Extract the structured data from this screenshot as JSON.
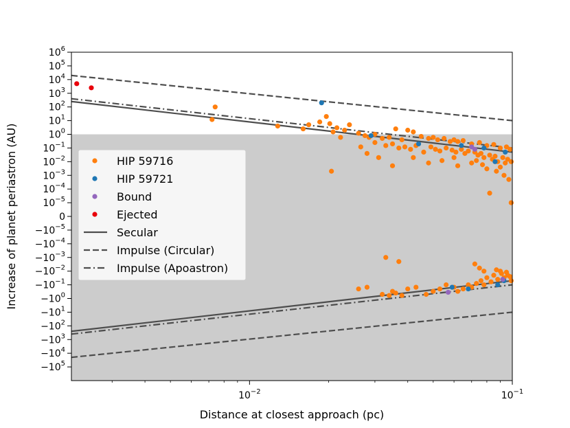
{
  "chart_data": {
    "type": "scatter",
    "title": "",
    "xlabel": "Distance at closest approach (pc)",
    "ylabel": "Increase of planet periastron (AU)",
    "x_scale": "log",
    "y_scale": "symlog",
    "xlim": [
      0.0021,
      0.1
    ],
    "ylim": [
      -1000000,
      1000000
    ],
    "shaded_region": {
      "y_from": -1000000,
      "y_to": 1,
      "color": "#cccccc"
    },
    "x_ticks": [
      {
        "value": 0.01,
        "base": "10",
        "exp": "−2"
      },
      {
        "value": 0.1,
        "base": "10",
        "exp": "−1"
      }
    ],
    "y_ticks": [
      {
        "value": 1000000,
        "base": "10",
        "exp": "6"
      },
      {
        "value": 100000,
        "base": "10",
        "exp": "5"
      },
      {
        "value": 10000,
        "base": "10",
        "exp": "4"
      },
      {
        "value": 1000,
        "base": "10",
        "exp": "3"
      },
      {
        "value": 100,
        "base": "10",
        "exp": "2"
      },
      {
        "value": 10,
        "base": "10",
        "exp": "1"
      },
      {
        "value": 1,
        "base": "10",
        "exp": "0"
      },
      {
        "value": 0.1,
        "base": "10",
        "exp": "−1"
      },
      {
        "value": 0.01,
        "base": "10",
        "exp": "−2"
      },
      {
        "value": 0.001,
        "base": "10",
        "exp": "−3"
      },
      {
        "value": 0.0001,
        "base": "10",
        "exp": "−4"
      },
      {
        "value": 1e-05,
        "base": "10",
        "exp": "−5"
      },
      {
        "value": 0,
        "base": "0",
        "exp": ""
      },
      {
        "value": -1e-05,
        "base": "−10",
        "exp": "−5"
      },
      {
        "value": -0.0001,
        "base": "−10",
        "exp": "−4"
      },
      {
        "value": -0.001,
        "base": "−10",
        "exp": "−3"
      },
      {
        "value": -0.01,
        "base": "−10",
        "exp": "−2"
      },
      {
        "value": -0.1,
        "base": "−10",
        "exp": "−1"
      },
      {
        "value": -1,
        "base": "−10",
        "exp": "0"
      },
      {
        "value": -10,
        "base": "−10",
        "exp": "1"
      },
      {
        "value": -100,
        "base": "−10",
        "exp": "2"
      },
      {
        "value": -1000,
        "base": "−10",
        "exp": "3"
      },
      {
        "value": -10000,
        "base": "−10",
        "exp": "4"
      },
      {
        "value": -100000,
        "base": "−10",
        "exp": "5"
      }
    ],
    "legend": {
      "position": "center-left",
      "entries": [
        {
          "label": "HIP 59716",
          "kind": "marker",
          "color": "#ff7f0e"
        },
        {
          "label": "HIP 59721",
          "kind": "marker",
          "color": "#1f77b4"
        },
        {
          "label": "Bound",
          "kind": "marker",
          "color": "#9467bd"
        },
        {
          "label": "Ejected",
          "kind": "marker",
          "color": "#e8000b"
        },
        {
          "label": "Secular",
          "kind": "line",
          "style": "solid",
          "color": "#4d4d4d"
        },
        {
          "label": "Impulse (Circular)",
          "kind": "line",
          "style": "dashed",
          "color": "#4d4d4d"
        },
        {
          "label": "Impulse (Apoastron)",
          "kind": "line",
          "style": "dashdot",
          "color": "#4d4d4d"
        }
      ]
    },
    "lines": [
      {
        "name": "Impulse (Circular)",
        "style": "dashed",
        "color": "#4d4d4d",
        "x": [
          0.0021,
          0.1
        ],
        "y": [
          20000,
          10
        ]
      },
      {
        "name": "Impulse (Apoastron)",
        "style": "dashdot",
        "color": "#4d4d4d",
        "x": [
          0.0021,
          0.1
        ],
        "y": [
          400,
          0.1
        ]
      },
      {
        "name": "Secular",
        "style": "solid",
        "color": "#4d4d4d",
        "x": [
          0.0021,
          0.1
        ],
        "y": [
          250,
          0.05
        ]
      },
      {
        "name": "Impulse (Circular)",
        "style": "dashed",
        "color": "#4d4d4d",
        "x": [
          0.0021,
          0.1
        ],
        "y": [
          -20000,
          -10
        ]
      },
      {
        "name": "Impulse (Apoastron)",
        "style": "dashdot",
        "color": "#4d4d4d",
        "x": [
          0.0021,
          0.1
        ],
        "y": [
          -400,
          -0.1
        ]
      },
      {
        "name": "Secular",
        "style": "solid",
        "color": "#4d4d4d",
        "x": [
          0.0021,
          0.1
        ],
        "y": [
          -250,
          -0.05
        ]
      }
    ],
    "series": [
      {
        "name": "HIP 59716",
        "color": "#ff7f0e",
        "points": [
          [
            0.0074,
            100
          ],
          [
            0.0072,
            12
          ],
          [
            0.0128,
            4
          ],
          [
            0.016,
            2.5
          ],
          [
            0.0168,
            5
          ],
          [
            0.0185,
            8
          ],
          [
            0.0196,
            20
          ],
          [
            0.0202,
            6
          ],
          [
            0.0208,
            1.5
          ],
          [
            0.0215,
            3
          ],
          [
            0.0222,
            0.6
          ],
          [
            0.023,
            2
          ],
          [
            0.024,
            5
          ],
          [
            0.026,
            1.2
          ],
          [
            0.0275,
            0.8
          ],
          [
            0.0285,
            0.6
          ],
          [
            0.03,
            1
          ],
          [
            0.032,
            0.5
          ],
          [
            0.034,
            0.6
          ],
          [
            0.036,
            2.5
          ],
          [
            0.038,
            0.4
          ],
          [
            0.04,
            2
          ],
          [
            0.042,
            1.5
          ],
          [
            0.045,
            0.7
          ],
          [
            0.048,
            0.5
          ],
          [
            0.05,
            0.6
          ],
          [
            0.052,
            0.4
          ],
          [
            0.055,
            0.5
          ],
          [
            0.058,
            0.3
          ],
          [
            0.06,
            0.4
          ],
          [
            0.062,
            0.3
          ],
          [
            0.065,
            0.35
          ],
          [
            0.07,
            0.2
          ],
          [
            0.075,
            0.25
          ],
          [
            0.08,
            0.15
          ],
          [
            0.085,
            0.18
          ],
          [
            0.09,
            0.1
          ],
          [
            0.095,
            0.12
          ],
          [
            0.098,
            0.08
          ],
          [
            0.0265,
            0.12
          ],
          [
            0.03,
            0.25
          ],
          [
            0.033,
            0.15
          ],
          [
            0.035,
            0.2
          ],
          [
            0.037,
            0.1
          ],
          [
            0.039,
            0.12
          ],
          [
            0.041,
            0.08
          ],
          [
            0.043,
            0.15
          ],
          [
            0.046,
            0.05
          ],
          [
            0.049,
            0.12
          ],
          [
            0.051,
            0.08
          ],
          [
            0.053,
            0.06
          ],
          [
            0.056,
            0.1
          ],
          [
            0.059,
            0.07
          ],
          [
            0.061,
            0.05
          ],
          [
            0.064,
            0.08
          ],
          [
            0.066,
            0.04
          ],
          [
            0.068,
            0.06
          ],
          [
            0.072,
            0.05
          ],
          [
            0.074,
            0.03
          ],
          [
            0.076,
            0.04
          ],
          [
            0.078,
            0.02
          ],
          [
            0.082,
            0.03
          ],
          [
            0.084,
            0.015
          ],
          [
            0.086,
            0.025
          ],
          [
            0.088,
            0.01
          ],
          [
            0.092,
            0.02
          ],
          [
            0.094,
            0.008
          ],
          [
            0.096,
            0.015
          ],
          [
            0.099,
            0.01
          ],
          [
            0.028,
            0.04
          ],
          [
            0.031,
            0.02
          ],
          [
            0.035,
            0.005
          ],
          [
            0.042,
            0.02
          ],
          [
            0.048,
            0.008
          ],
          [
            0.054,
            0.012
          ],
          [
            0.06,
            0.02
          ],
          [
            0.062,
            0.005
          ],
          [
            0.07,
            0.008
          ],
          [
            0.073,
            0.012
          ],
          [
            0.077,
            0.006
          ],
          [
            0.08,
            0.003
          ],
          [
            0.087,
            0.002
          ],
          [
            0.09,
            0.004
          ],
          [
            0.093,
            0.001
          ],
          [
            0.097,
            0.0005
          ],
          [
            0.0205,
            0.002
          ],
          [
            0.082,
            5e-05
          ],
          [
            0.099,
            1e-05
          ],
          [
            0.033,
            -0.001
          ],
          [
            0.037,
            -0.002
          ],
          [
            0.026,
            -0.2
          ],
          [
            0.028,
            -0.15
          ],
          [
            0.032,
            -0.5
          ],
          [
            0.034,
            -0.6
          ],
          [
            0.035,
            -0.3
          ],
          [
            0.036,
            -0.4
          ],
          [
            0.038,
            -0.6
          ],
          [
            0.04,
            -0.2
          ],
          [
            0.043,
            -0.15
          ],
          [
            0.047,
            -0.5
          ],
          [
            0.05,
            -0.3
          ],
          [
            0.053,
            -0.2
          ],
          [
            0.056,
            -0.1
          ],
          [
            0.06,
            -0.15
          ],
          [
            0.062,
            -0.3
          ],
          [
            0.065,
            -0.2
          ],
          [
            0.068,
            -0.1
          ],
          [
            0.07,
            -0.15
          ],
          [
            0.073,
            -0.08
          ],
          [
            0.076,
            -0.05
          ],
          [
            0.078,
            -0.1
          ],
          [
            0.08,
            -0.03
          ],
          [
            0.083,
            -0.06
          ],
          [
            0.085,
            -0.02
          ],
          [
            0.088,
            -0.04
          ],
          [
            0.09,
            -0.01
          ],
          [
            0.093,
            -0.03
          ],
          [
            0.096,
            -0.02
          ],
          [
            0.099,
            -0.05
          ],
          [
            0.072,
            -0.003
          ],
          [
            0.075,
            -0.006
          ],
          [
            0.078,
            -0.01
          ],
          [
            0.087,
            -0.008
          ],
          [
            0.091,
            -0.015
          ],
          [
            0.095,
            -0.012
          ],
          [
            0.098,
            -0.025
          ]
        ]
      },
      {
        "name": "HIP 59721",
        "color": "#1f77b4",
        "points": [
          [
            0.0188,
            200
          ],
          [
            0.029,
            0.8
          ],
          [
            0.044,
            0.2
          ],
          [
            0.064,
            0.15
          ],
          [
            0.078,
            0.1
          ],
          [
            0.086,
            0.01
          ],
          [
            0.094,
            0.05
          ],
          [
            0.068,
            -0.2
          ],
          [
            0.088,
            -0.1
          ],
          [
            0.093,
            -0.05
          ],
          [
            0.059,
            -0.15
          ]
        ]
      },
      {
        "name": "Bound",
        "color": "#9467bd",
        "points": [
          [
            0.07,
            0.12
          ],
          [
            0.072,
            0.08
          ],
          [
            0.057,
            -0.35
          ],
          [
            0.092,
            -0.04
          ]
        ]
      },
      {
        "name": "Ejected",
        "color": "#e8000b",
        "points": [
          [
            0.0022,
            5000
          ],
          [
            0.0025,
            2500
          ]
        ]
      }
    ]
  }
}
